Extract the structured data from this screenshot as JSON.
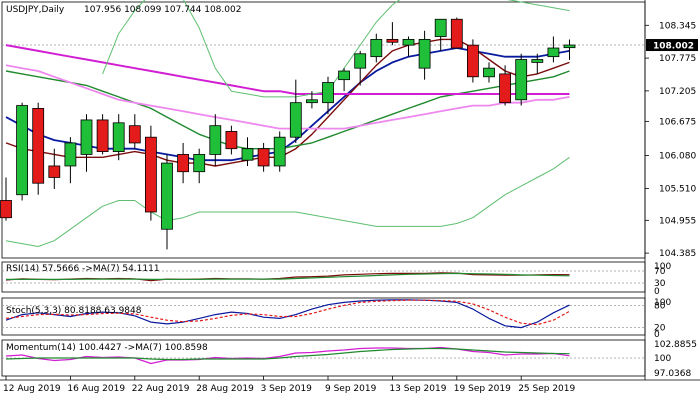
{
  "header": {
    "symbol": "USDJPY,Daily",
    "ohlc": "107.956 108.099 107.744 108.002"
  },
  "colors": {
    "bg": "#ffffff",
    "bull": "#1fbf3a",
    "bear": "#e41b1b",
    "grid": "#c8c8c8",
    "ma_fast": "#7b0c0c",
    "ma_mid": "#0a1a9e",
    "ma_green": "#1f8a2e",
    "ma_magenta": "#d21ed2",
    "ma_pink": "#ee88ee",
    "bb": "#5fbf70",
    "price_tag": "#000000"
  },
  "chart_data": [
    {
      "type": "candlestick",
      "title": "USDJPY,Daily",
      "ylim": [
        104.3,
        108.75
      ],
      "y_ticks": [
        "108.345",
        "107.775",
        "107.205",
        "106.675",
        "106.080",
        "105.510",
        "104.955",
        "104.385"
      ],
      "x_tick_labels": [
        "12 Aug 2019",
        "16 Aug 2019",
        "22 Aug 2019",
        "28 Aug 2019",
        "3 Sep 2019",
        "9 Sep 2019",
        "13 Sep 2019",
        "19 Sep 2019",
        "25 Sep 2019"
      ],
      "x_tick_index": [
        0,
        4,
        8,
        12,
        16,
        20,
        24,
        28,
        32
      ],
      "last_price": "108.002",
      "candles": [
        {
          "o": 105.3,
          "h": 105.7,
          "l": 104.95,
          "c": 105.0
        },
        {
          "o": 105.4,
          "h": 107.0,
          "l": 105.3,
          "c": 106.95
        },
        {
          "o": 106.9,
          "h": 107.0,
          "l": 105.4,
          "c": 105.6
        },
        {
          "o": 105.9,
          "h": 106.2,
          "l": 105.5,
          "c": 105.7
        },
        {
          "o": 105.9,
          "h": 106.4,
          "l": 105.6,
          "c": 106.3
        },
        {
          "o": 106.1,
          "h": 106.8,
          "l": 105.8,
          "c": 106.7
        },
        {
          "o": 106.7,
          "h": 106.8,
          "l": 106.1,
          "c": 106.15
        },
        {
          "o": 106.15,
          "h": 106.8,
          "l": 106.0,
          "c": 106.65
        },
        {
          "o": 106.6,
          "h": 106.8,
          "l": 106.2,
          "c": 106.3
        },
        {
          "o": 106.4,
          "h": 106.6,
          "l": 104.95,
          "c": 105.1
        },
        {
          "o": 104.8,
          "h": 106.1,
          "l": 104.45,
          "c": 105.95
        },
        {
          "o": 106.1,
          "h": 106.3,
          "l": 105.6,
          "c": 105.8
        },
        {
          "o": 105.8,
          "h": 106.2,
          "l": 105.6,
          "c": 106.1
        },
        {
          "o": 106.1,
          "h": 106.8,
          "l": 105.9,
          "c": 106.6
        },
        {
          "o": 106.5,
          "h": 106.6,
          "l": 106.1,
          "c": 106.2
        },
        {
          "o": 106.0,
          "h": 106.4,
          "l": 105.9,
          "c": 106.2
        },
        {
          "o": 106.2,
          "h": 106.3,
          "l": 105.8,
          "c": 105.9
        },
        {
          "o": 105.9,
          "h": 106.5,
          "l": 105.8,
          "c": 106.4
        },
        {
          "o": 106.4,
          "h": 107.4,
          "l": 106.3,
          "c": 107.0
        },
        {
          "o": 107.0,
          "h": 107.2,
          "l": 106.9,
          "c": 107.05
        },
        {
          "o": 107.0,
          "h": 107.45,
          "l": 106.8,
          "c": 107.35
        },
        {
          "o": 107.4,
          "h": 107.6,
          "l": 107.2,
          "c": 107.55
        },
        {
          "o": 107.6,
          "h": 107.9,
          "l": 107.3,
          "c": 107.85
        },
        {
          "o": 107.8,
          "h": 108.2,
          "l": 107.7,
          "c": 108.1
        },
        {
          "o": 108.1,
          "h": 108.4,
          "l": 108.0,
          "c": 108.05
        },
        {
          "o": 108.0,
          "h": 108.15,
          "l": 107.8,
          "c": 108.1
        },
        {
          "o": 107.6,
          "h": 108.25,
          "l": 107.4,
          "c": 108.1
        },
        {
          "o": 108.15,
          "h": 108.45,
          "l": 107.9,
          "c": 108.45
        },
        {
          "o": 108.45,
          "h": 108.48,
          "l": 107.95,
          "c": 107.95
        },
        {
          "o": 108.0,
          "h": 108.1,
          "l": 107.35,
          "c": 107.45
        },
        {
          "o": 107.45,
          "h": 107.7,
          "l": 107.35,
          "c": 107.6
        },
        {
          "o": 107.5,
          "h": 107.65,
          "l": 106.95,
          "c": 107.0
        },
        {
          "o": 107.05,
          "h": 107.85,
          "l": 106.95,
          "c": 107.75
        },
        {
          "o": 107.7,
          "h": 107.85,
          "l": 107.5,
          "c": 107.75
        },
        {
          "o": 107.8,
          "h": 108.15,
          "l": 107.7,
          "c": 107.95
        },
        {
          "o": 107.956,
          "h": 108.099,
          "l": 107.744,
          "c": 108.002
        }
      ],
      "overlays": [
        {
          "color_key": "ma_mid",
          "width": 1.8,
          "values": [
            106.75,
            106.6,
            106.45,
            106.35,
            106.3,
            106.25,
            106.2,
            106.2,
            106.2,
            106.15,
            106.1,
            106.05,
            106.0,
            106.0,
            106.0,
            106.05,
            106.1,
            106.15,
            106.35,
            106.6,
            106.85,
            107.1,
            107.35,
            107.55,
            107.7,
            107.8,
            107.85,
            107.9,
            107.95,
            107.9,
            107.85,
            107.8,
            107.8,
            107.8,
            107.85,
            107.9
          ]
        },
        {
          "color_key": "ma_fast",
          "width": 1.4,
          "values": [
            106.3,
            106.2,
            106.15,
            106.1,
            106.05,
            106.05,
            106.05,
            106.1,
            106.15,
            106.1,
            106.0,
            105.95,
            105.95,
            105.9,
            105.95,
            106.0,
            106.05,
            106.05,
            106.2,
            106.45,
            106.75,
            107.05,
            107.35,
            107.65,
            107.9,
            108.0,
            108.05,
            108.1,
            108.1,
            107.95,
            107.75,
            107.55,
            107.45,
            107.5,
            107.6,
            107.7
          ]
        },
        {
          "color_key": "ma_green",
          "width": 1.4,
          "values": [
            107.55,
            107.5,
            107.45,
            107.4,
            107.35,
            107.3,
            107.2,
            107.1,
            107.0,
            106.9,
            106.75,
            106.6,
            106.45,
            106.35,
            106.25,
            106.2,
            106.2,
            106.2,
            106.25,
            106.3,
            106.4,
            106.5,
            106.6,
            106.7,
            106.8,
            106.9,
            107.0,
            107.1,
            107.15,
            107.2,
            107.25,
            107.3,
            107.35,
            107.4,
            107.45,
            107.55
          ]
        },
        {
          "color_key": "ma_magenta",
          "width": 2.0,
          "values": [
            108.0,
            107.95,
            107.9,
            107.85,
            107.8,
            107.75,
            107.7,
            107.65,
            107.6,
            107.55,
            107.5,
            107.45,
            107.4,
            107.35,
            107.3,
            107.25,
            107.2,
            107.2,
            107.15,
            107.15,
            107.15,
            107.15,
            107.15,
            107.15,
            107.15,
            107.15,
            107.15,
            107.15,
            107.15,
            107.15,
            107.15,
            107.15,
            107.15,
            107.15,
            107.15,
            107.15
          ]
        },
        {
          "color_key": "ma_pink",
          "width": 1.8,
          "values": [
            107.65,
            107.6,
            107.55,
            107.45,
            107.35,
            107.25,
            107.15,
            107.05,
            107.0,
            106.95,
            106.9,
            106.85,
            106.8,
            106.75,
            106.7,
            106.65,
            106.6,
            106.55,
            106.55,
            106.55,
            106.55,
            106.55,
            106.6,
            106.65,
            106.7,
            106.75,
            106.8,
            106.85,
            106.9,
            106.95,
            106.95,
            107.0,
            107.0,
            107.05,
            107.05,
            107.1
          ]
        },
        {
          "color_key": "bb",
          "width": 1.0,
          "values": [
            null,
            null,
            null,
            null,
            null,
            null,
            107.5,
            108.2,
            108.6,
            108.9,
            109.0,
            108.8,
            108.3,
            107.6,
            107.2,
            107.15,
            107.1,
            107.1,
            107.1,
            107.15,
            107.2,
            107.6,
            108.0,
            108.4,
            108.7,
            108.9,
            108.95,
            109.0,
            109.0,
            108.95,
            108.9,
            108.8,
            108.75,
            108.7,
            108.65,
            108.6
          ]
        },
        {
          "color_key": "bb",
          "width": 1.0,
          "values": [
            104.6,
            104.55,
            104.5,
            104.6,
            104.8,
            105.0,
            105.2,
            105.3,
            105.3,
            105.1,
            104.95,
            105.0,
            105.1,
            105.1,
            105.1,
            105.1,
            105.1,
            105.1,
            105.1,
            105.05,
            105.0,
            104.95,
            104.9,
            104.85,
            104.85,
            104.85,
            104.85,
            104.85,
            104.9,
            105.0,
            105.2,
            105.4,
            105.55,
            105.7,
            105.85,
            106.05
          ]
        }
      ]
    },
    {
      "type": "line",
      "title": "RSI(14) 57.5666 ->MA(7) 54.1111",
      "ylim": [
        0,
        100
      ],
      "y_ticks": [
        "100",
        "70",
        "30",
        "0"
      ],
      "series": [
        {
          "name": "RSI(14)",
          "color_key": "ma_fast",
          "values": [
            40,
            44,
            42,
            41,
            43,
            45,
            44,
            45,
            44,
            38,
            43,
            42,
            43,
            45,
            44,
            44,
            43,
            45,
            50,
            51,
            53,
            57,
            59,
            61,
            62,
            62,
            62,
            64,
            63,
            58,
            57,
            56,
            56,
            57,
            58,
            57.5666
          ]
        },
        {
          "name": "MA(7)",
          "color_key": "ma_green",
          "values": [
            42,
            42,
            42,
            42,
            42,
            43,
            43,
            43,
            43,
            42,
            42,
            42,
            42,
            43,
            43,
            43,
            43,
            43,
            45,
            47,
            49,
            51,
            53,
            55,
            57,
            59,
            60,
            61,
            62,
            61,
            60,
            59,
            57,
            56,
            55,
            54.1111
          ]
        }
      ]
    },
    {
      "type": "line",
      "title": "Stoch(5,3,3) 80.8188 63.9848",
      "ylim": [
        0,
        100
      ],
      "y_ticks": [
        "100",
        "80",
        "20",
        "0"
      ],
      "series": [
        {
          "name": "main",
          "color_key": "ma_mid",
          "values": [
            40,
            55,
            60,
            55,
            50,
            58,
            62,
            60,
            52,
            35,
            30,
            35,
            45,
            55,
            62,
            58,
            48,
            45,
            55,
            70,
            82,
            88,
            92,
            94,
            95,
            95,
            94,
            92,
            88,
            70,
            45,
            25,
            20,
            35,
            60,
            80.8188
          ]
        },
        {
          "name": "signal",
          "color_key": "bear",
          "values": [
            45,
            50,
            55,
            56,
            54,
            55,
            58,
            59,
            57,
            48,
            40,
            36,
            38,
            45,
            53,
            57,
            55,
            50,
            50,
            58,
            70,
            80,
            88,
            91,
            93,
            94,
            94,
            93,
            91,
            84,
            68,
            48,
            32,
            28,
            40,
            63.9848
          ]
        }
      ]
    },
    {
      "type": "line",
      "title": "Momentum(14) 100.4427 ->MA(7) 100.8598",
      "ylim": [
        96.4,
        103.6
      ],
      "y_ticks": [
        "102.8855",
        "100",
        "97.0368"
      ],
      "series": [
        {
          "name": "Momentum(14)",
          "color_key": "ma_magenta",
          "values": [
            100.4,
            100.6,
            99.9,
            99.5,
            99.7,
            100.3,
            100.1,
            100.2,
            100.0,
            98.9,
            99.6,
            99.6,
            99.7,
            100.1,
            99.9,
            100.0,
            99.9,
            100.3,
            101.0,
            101.1,
            101.4,
            101.6,
            101.9,
            102.0,
            102.0,
            101.9,
            101.9,
            102.1,
            101.8,
            101.3,
            101.1,
            100.6,
            100.8,
            100.8,
            100.9,
            100.4427
          ]
        },
        {
          "name": "MA(7)",
          "color_key": "ma_green",
          "values": [
            99.8,
            99.9,
            100.0,
            100.0,
            100.0,
            100.0,
            100.0,
            100.0,
            100.0,
            99.8,
            99.7,
            99.7,
            99.8,
            99.8,
            99.8,
            99.8,
            99.8,
            100.0,
            100.3,
            100.5,
            100.7,
            101.0,
            101.3,
            101.5,
            101.7,
            101.8,
            101.9,
            101.9,
            101.8,
            101.6,
            101.4,
            101.2,
            101.1,
            101.0,
            100.9,
            100.8598
          ]
        }
      ]
    }
  ]
}
